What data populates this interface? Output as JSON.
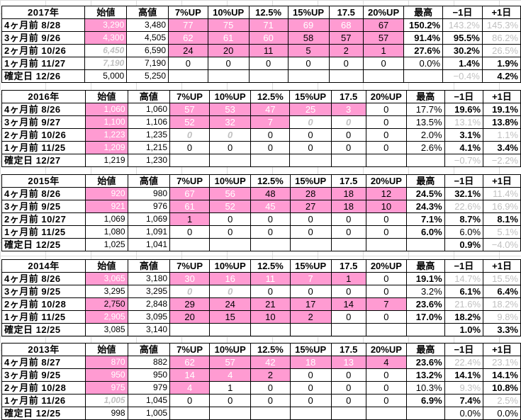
{
  "headers": [
    "始値",
    "高値",
    "7%UP",
    "10%UP",
    "12.5%",
    "15%UP",
    "17.5",
    "20%UP",
    "最高",
    "−1日",
    "+1日"
  ],
  "blocks": [
    {
      "year": "2017年",
      "rows": [
        {
          "label": "4ヶ月前  8/28",
          "cells": [
            "3,290",
            "3,480",
            "77",
            "75",
            "71",
            "69",
            "68",
            "67",
            "150.2%",
            "143.2%",
            "145.3%"
          ]
        },
        {
          "label": "3ヶ月前  9/26",
          "cells": [
            "4,300",
            "4,505",
            "62",
            "61",
            "60",
            "58",
            "57",
            "57",
            "91.4%",
            "95.5%",
            "86.2%"
          ]
        },
        {
          "label": "2ヶ月前  10/26",
          "cells": [
            "6,450",
            "6,590",
            "24",
            "20",
            "11",
            "5",
            "2",
            "1",
            "27.6%",
            "30.2%",
            "26.5%"
          ]
        },
        {
          "label": "1ヶ月前  11/27",
          "cells": [
            "7,190",
            "7,190",
            "0",
            "0",
            "0",
            "0",
            "0",
            "0",
            "0.0%",
            "1.4%",
            "1.9%"
          ]
        },
        {
          "label": "確定日  12/26",
          "cells": [
            "5,000",
            "5,250",
            "",
            "",
            "",
            "",
            "",
            "",
            "",
            "−0.4%",
            "4.2%"
          ]
        }
      ]
    },
    {
      "year": "2016年",
      "rows": [
        {
          "label": "4ヶ月前  8/26",
          "cells": [
            "1,060",
            "1,060",
            "57",
            "53",
            "47",
            "25",
            "3",
            "0",
            "17.7%",
            "19.6%",
            "19.1%"
          ]
        },
        {
          "label": "3ヶ月前  9/27",
          "cells": [
            "1,100",
            "1,106",
            "52",
            "32",
            "7",
            "0",
            "0",
            "0",
            "13.5%",
            "13.1%",
            "13.8%"
          ]
        },
        {
          "label": "2ヶ月前  10/26",
          "cells": [
            "1,223",
            "1,235",
            "0",
            "0",
            "0",
            "0",
            "0",
            "0",
            "2.0%",
            "3.1%",
            "1.1%"
          ]
        },
        {
          "label": "1ヶ月前  11/25",
          "cells": [
            "1,209",
            "1,215",
            "0",
            "0",
            "0",
            "0",
            "0",
            "0",
            "2.6%",
            "4.1%",
            "3.4%"
          ]
        },
        {
          "label": "確定日  12/27",
          "cells": [
            "1,219",
            "1,230",
            "",
            "",
            "",
            "",
            "",
            "",
            "",
            "−0.7%",
            "−2.2%"
          ]
        }
      ]
    },
    {
      "year": "2015年",
      "rows": [
        {
          "label": "4ヶ月前  8/26",
          "cells": [
            "920",
            "980",
            "67",
            "56",
            "48",
            "28",
            "18",
            "12",
            "24.5%",
            "32.1%",
            "11.4%"
          ]
        },
        {
          "label": "3ヶ月前  9/25",
          "cells": [
            "921",
            "976",
            "61",
            "52",
            "45",
            "27",
            "18",
            "10",
            "24.3%",
            "22.6%",
            "16.9%"
          ]
        },
        {
          "label": "2ヶ月前  10/27",
          "cells": [
            "1,069",
            "1,069",
            "1",
            "0",
            "0",
            "0",
            "0",
            "0",
            "7.1%",
            "8.7%",
            "8.1%"
          ]
        },
        {
          "label": "1ヶ月前  11/25",
          "cells": [
            "1,080",
            "1,091",
            "0",
            "0",
            "0",
            "0",
            "0",
            "0",
            "6.0%",
            "6.0%",
            "5.1%"
          ]
        },
        {
          "label": "確定日  12/25",
          "cells": [
            "1,025",
            "1,041",
            "",
            "",
            "",
            "",
            "",
            "",
            "",
            "0.9%",
            "−4.0%"
          ]
        }
      ]
    },
    {
      "year": "2014年",
      "rows": [
        {
          "label": "4ヶ月前  8/26",
          "cells": [
            "3,065",
            "3,180",
            "30",
            "16",
            "11",
            "7",
            "1",
            "0",
            "19.1%",
            "14.7%",
            "15.5%"
          ]
        },
        {
          "label": "3ヶ月前  9/25",
          "cells": [
            "3,295",
            "3,295",
            "0",
            "0",
            "0",
            "0",
            "0",
            "0",
            "3.2%",
            "6.1%",
            "6.4%"
          ]
        },
        {
          "label": "2ヶ月前  10/28",
          "cells": [
            "2,750",
            "2,848",
            "29",
            "24",
            "21",
            "17",
            "14",
            "7",
            "23.6%",
            "21.6%",
            "18.2%"
          ]
        },
        {
          "label": "1ヶ月前  11/25",
          "cells": [
            "2,905",
            "3,095",
            "20",
            "15",
            "10",
            "2",
            "0",
            "0",
            "17.0%",
            "18.2%",
            "9.8%"
          ]
        },
        {
          "label": "確定日  12/25",
          "cells": [
            "3,085",
            "3,140",
            "",
            "",
            "",
            "",
            "",
            "",
            "",
            "1.0%",
            "3.3%"
          ]
        }
      ]
    },
    {
      "year": "2013年",
      "rows": [
        {
          "label": "4ヶ月前  8/27",
          "cells": [
            "870",
            "882",
            "62",
            "57",
            "42",
            "18",
            "13",
            "4",
            "23.6%",
            "22.4%",
            "23.1%"
          ]
        },
        {
          "label": "3ヶ月前  9/25",
          "cells": [
            "950",
            "950",
            "14",
            "4",
            "2",
            "0",
            "0",
            "0",
            "13.2%",
            "14.1%",
            "14.1%"
          ]
        },
        {
          "label": "2ヶ月前  10/28",
          "cells": [
            "975",
            "979",
            "4",
            "1",
            "0",
            "0",
            "0",
            "0",
            "10.3%",
            "9.3%",
            "10.8%"
          ]
        },
        {
          "label": "1ヶ月前  11/26",
          "cells": [
            "1,005",
            "1,045",
            "0",
            "0",
            "0",
            "0",
            "0",
            "0",
            "6.9%",
            "7.4%",
            "2.5%"
          ]
        },
        {
          "label": "確定日  12/25",
          "cells": [
            "998",
            "1,005",
            "",
            "",
            "",
            "",
            "",
            "",
            "",
            "0.0%",
            "0.0%"
          ]
        }
      ]
    }
  ]
}
